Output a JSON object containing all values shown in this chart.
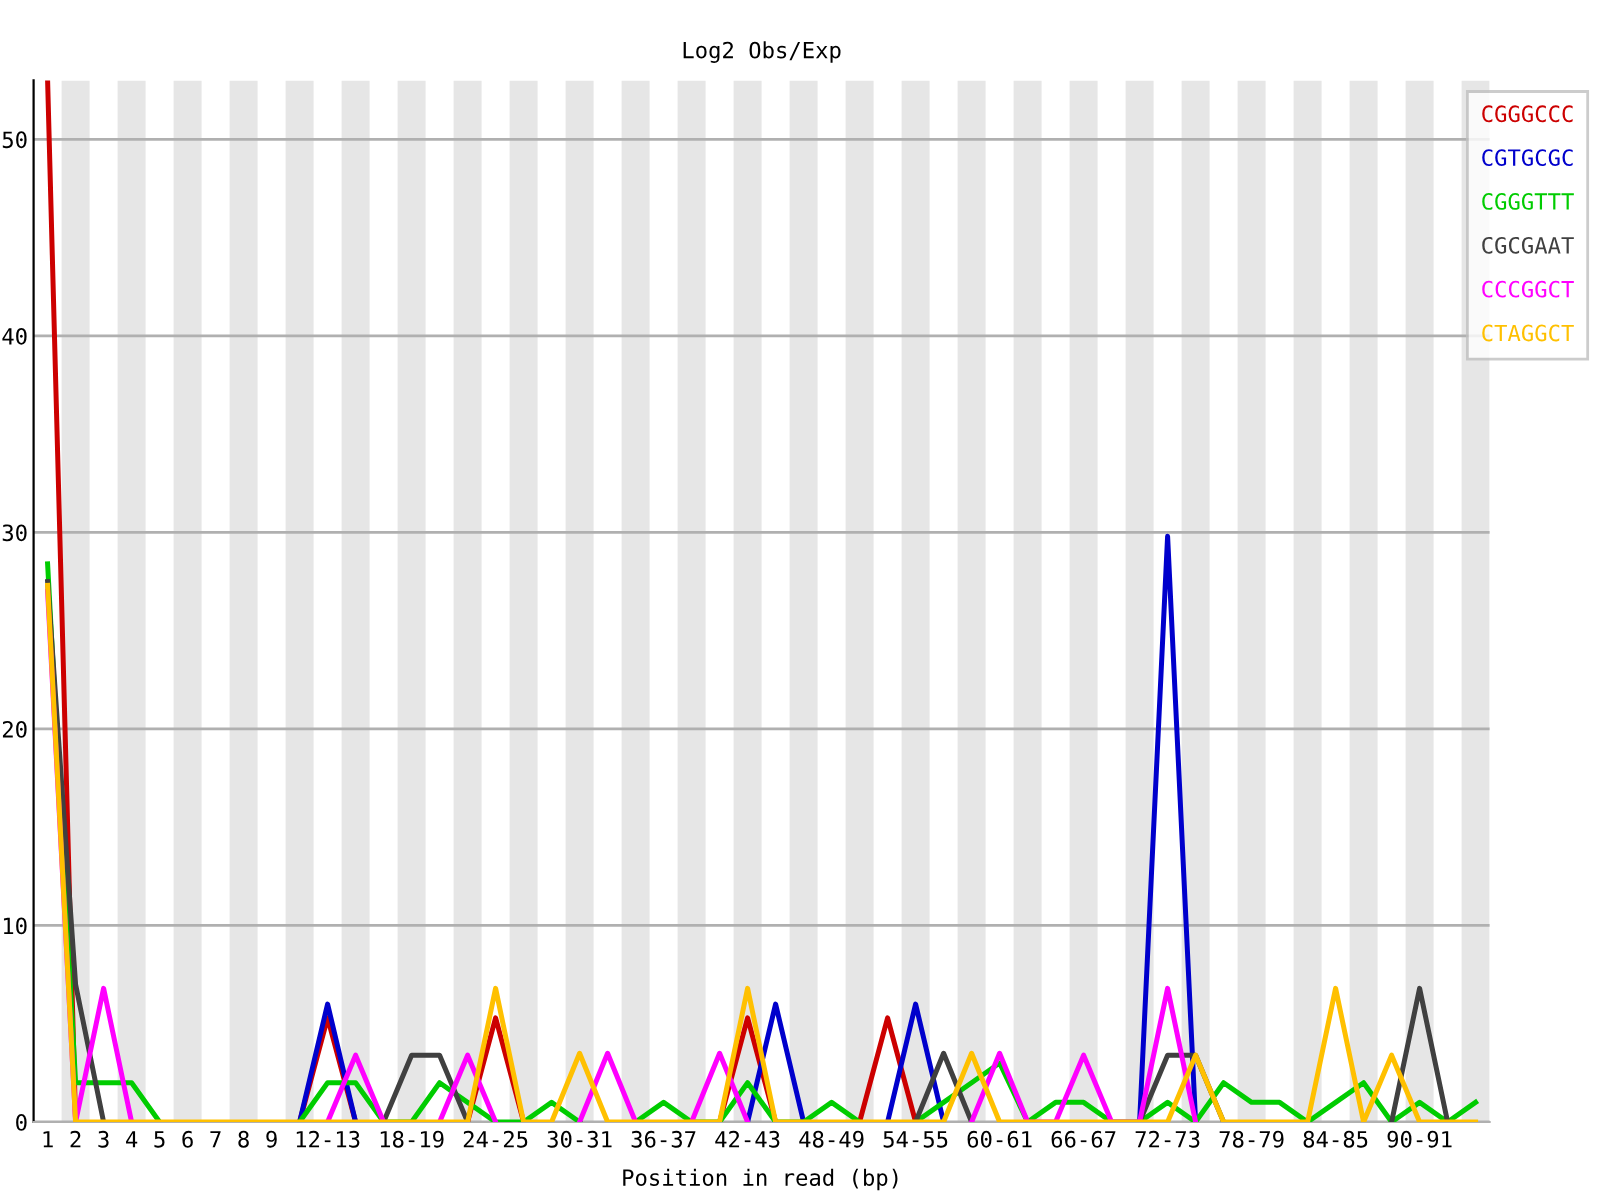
{
  "chart_data": {
    "type": "line",
    "title": "Log2 Obs/Exp",
    "xlabel": "Position in read (bp)",
    "categories": [
      "1",
      "2",
      "3",
      "4",
      "5",
      "6",
      "7",
      "8",
      "9",
      null,
      "12-13",
      null,
      null,
      "18-19",
      null,
      null,
      "24-25",
      null,
      null,
      "30-31",
      null,
      null,
      "36-37",
      null,
      null,
      "42-43",
      null,
      null,
      "48-49",
      null,
      null,
      "54-55",
      null,
      null,
      "60-61",
      null,
      null,
      "66-67",
      null,
      null,
      "72-73",
      null,
      null,
      "78-79",
      null,
      null,
      "84-85",
      null,
      null,
      "90-91",
      null,
      null
    ],
    "series": [
      {
        "name": "CGGGCCC",
        "color": "#cc0000",
        "values": [
          53,
          0,
          null,
          null,
          null,
          null,
          null,
          null,
          null,
          0,
          5.3,
          0,
          null,
          null,
          null,
          0,
          5.3,
          0,
          null,
          null,
          null,
          null,
          null,
          null,
          0,
          5.3,
          0,
          null,
          null,
          0,
          5.3,
          0,
          null,
          null,
          null,
          null,
          null,
          null,
          null,
          null,
          null,
          null,
          null,
          null,
          null,
          null,
          null,
          null,
          null,
          null,
          null,
          null
        ]
      },
      {
        "name": "CGTGCGC",
        "color": "#0000cc",
        "values": [
          null,
          null,
          null,
          null,
          null,
          null,
          null,
          null,
          null,
          0,
          6,
          0,
          null,
          null,
          null,
          null,
          null,
          null,
          null,
          null,
          null,
          null,
          null,
          null,
          null,
          0,
          6,
          0,
          null,
          null,
          0,
          6,
          0,
          null,
          null,
          null,
          null,
          null,
          null,
          0,
          29.8,
          0,
          null,
          null,
          null,
          null,
          null,
          null,
          null,
          null,
          null,
          null
        ]
      },
      {
        "name": "CGGGTTT",
        "color": "#00cc00",
        "values": [
          28.4,
          2,
          2,
          2,
          0,
          null,
          null,
          null,
          null,
          0,
          2,
          2,
          0,
          0,
          2,
          1,
          0,
          0,
          1,
          0,
          null,
          0,
          1,
          0,
          0,
          2,
          0,
          0,
          1,
          0,
          null,
          0,
          1,
          2,
          3,
          0,
          1,
          1,
          0,
          0,
          1,
          0,
          2,
          1,
          1,
          0,
          1,
          2,
          0,
          1,
          0,
          1
        ]
      },
      {
        "name": "CGCGAAT",
        "color": "#404040",
        "values": [
          27.5,
          7,
          0,
          null,
          null,
          null,
          null,
          null,
          null,
          null,
          null,
          null,
          0,
          3.4,
          3.4,
          0,
          null,
          null,
          null,
          null,
          null,
          null,
          null,
          null,
          null,
          null,
          null,
          null,
          null,
          null,
          null,
          0,
          3.5,
          0,
          null,
          null,
          null,
          null,
          null,
          0,
          3.4,
          3.4,
          0,
          null,
          null,
          null,
          null,
          null,
          0,
          6.8,
          0,
          null
        ]
      },
      {
        "name": "CCCGGCT",
        "color": "#ff00ff",
        "values": [
          27,
          0,
          6.8,
          0,
          null,
          null,
          null,
          null,
          null,
          null,
          0,
          3.4,
          0,
          null,
          0,
          3.4,
          0,
          null,
          null,
          0,
          3.5,
          0,
          null,
          0,
          3.5,
          0,
          null,
          null,
          null,
          null,
          null,
          null,
          null,
          0,
          3.5,
          0,
          0,
          3.4,
          0,
          0,
          6.8,
          0,
          null,
          null,
          null,
          null,
          null,
          null,
          null,
          null,
          null,
          null
        ]
      },
      {
        "name": "CTAGGCT",
        "color": "#ffc000",
        "values": [
          27.3,
          0,
          0,
          0,
          0,
          0,
          0,
          0,
          0,
          0,
          0,
          0,
          0,
          0,
          0,
          0,
          6.8,
          0,
          0,
          3.5,
          0,
          0,
          0,
          0,
          0,
          6.8,
          0,
          0,
          0,
          0,
          0,
          0,
          0,
          3.5,
          0,
          0,
          0,
          0,
          0,
          0,
          0,
          3.4,
          0,
          0,
          0,
          0,
          6.8,
          0,
          3.4,
          0,
          0,
          0
        ]
      }
    ],
    "ylim": [
      0,
      53
    ],
    "yticks": [
      0,
      10,
      20,
      30,
      40,
      50
    ],
    "grid": "y",
    "legend": "top right",
    "marker": "none",
    "line_style": "solid"
  }
}
